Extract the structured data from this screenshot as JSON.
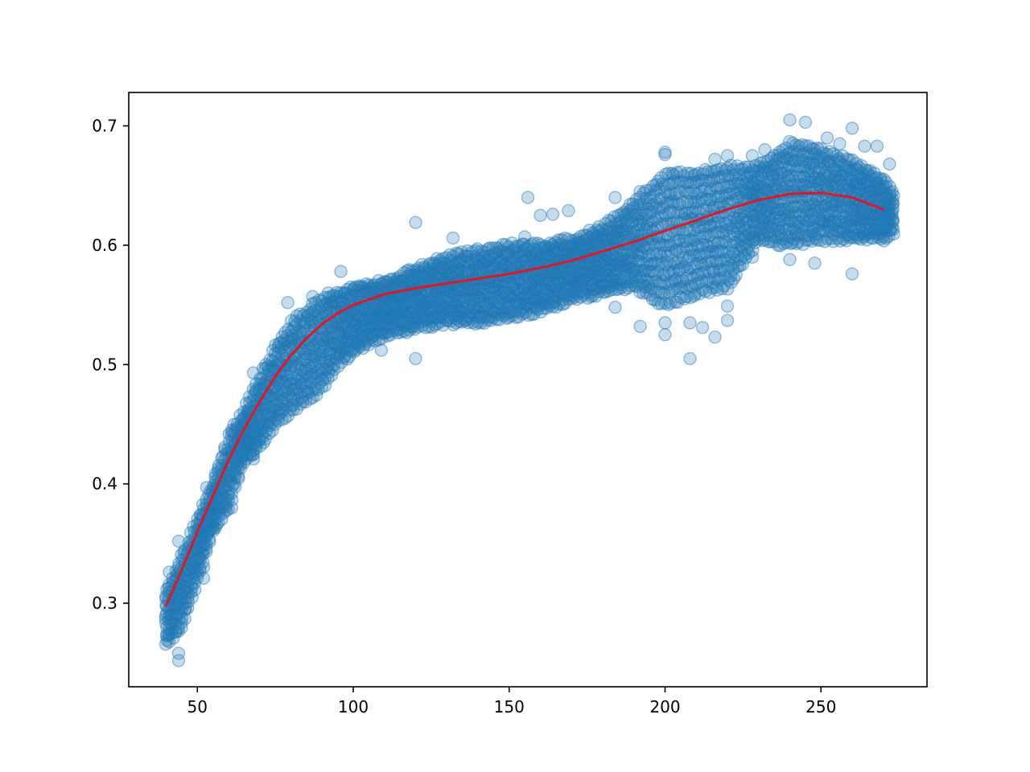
{
  "chart_data": {
    "type": "scatter",
    "title": "",
    "xlabel": "",
    "ylabel": "",
    "xlim": [
      28,
      284
    ],
    "ylim": [
      0.23,
      0.728
    ],
    "grid": false,
    "legend": "none",
    "x_ticks": [
      50,
      100,
      150,
      200,
      250
    ],
    "x_tick_labels": [
      "50",
      "100",
      "150",
      "200",
      "250"
    ],
    "y_ticks": [
      0.3,
      0.4,
      0.5,
      0.6,
      0.7
    ],
    "y_tick_labels": [
      "0.3",
      "0.4",
      "0.5",
      "0.6",
      "0.7"
    ],
    "colors": {
      "scatter": "#1f77b4",
      "fit_line": "#e8141a"
    },
    "series": [
      {
        "kind": "scatter",
        "band_envelope": [
          {
            "x": 40,
            "ymin": 0.265,
            "ymax": 0.31
          },
          {
            "x": 45,
            "ymin": 0.28,
            "ymax": 0.34
          },
          {
            "x": 50,
            "ymin": 0.32,
            "ymax": 0.37
          },
          {
            "x": 55,
            "ymin": 0.36,
            "ymax": 0.4
          },
          {
            "x": 60,
            "ymin": 0.38,
            "ymax": 0.44
          },
          {
            "x": 65,
            "ymin": 0.42,
            "ymax": 0.46
          },
          {
            "x": 70,
            "ymin": 0.43,
            "ymax": 0.49
          },
          {
            "x": 75,
            "ymin": 0.45,
            "ymax": 0.515
          },
          {
            "x": 80,
            "ymin": 0.46,
            "ymax": 0.535
          },
          {
            "x": 85,
            "ymin": 0.47,
            "ymax": 0.545
          },
          {
            "x": 90,
            "ymin": 0.48,
            "ymax": 0.555
          },
          {
            "x": 95,
            "ymin": 0.5,
            "ymax": 0.56
          },
          {
            "x": 100,
            "ymin": 0.51,
            "ymax": 0.565
          },
          {
            "x": 110,
            "ymin": 0.525,
            "ymax": 0.57
          },
          {
            "x": 120,
            "ymin": 0.53,
            "ymax": 0.58
          },
          {
            "x": 130,
            "ymin": 0.535,
            "ymax": 0.59
          },
          {
            "x": 140,
            "ymin": 0.535,
            "ymax": 0.595
          },
          {
            "x": 150,
            "ymin": 0.54,
            "ymax": 0.6
          },
          {
            "x": 160,
            "ymin": 0.545,
            "ymax": 0.6
          },
          {
            "x": 170,
            "ymin": 0.555,
            "ymax": 0.605
          },
          {
            "x": 180,
            "ymin": 0.56,
            "ymax": 0.615
          },
          {
            "x": 190,
            "ymin": 0.565,
            "ymax": 0.635
          },
          {
            "x": 200,
            "ymin": 0.55,
            "ymax": 0.66
          },
          {
            "x": 210,
            "ymin": 0.56,
            "ymax": 0.66
          },
          {
            "x": 220,
            "ymin": 0.565,
            "ymax": 0.665
          },
          {
            "x": 230,
            "ymin": 0.605,
            "ymax": 0.665
          },
          {
            "x": 240,
            "ymin": 0.6,
            "ymax": 0.685
          },
          {
            "x": 250,
            "ymin": 0.605,
            "ymax": 0.68
          },
          {
            "x": 260,
            "ymin": 0.605,
            "ymax": 0.67
          },
          {
            "x": 270,
            "ymin": 0.605,
            "ymax": 0.655
          },
          {
            "x": 273,
            "ymin": 0.61,
            "ymax": 0.645
          }
        ],
        "outliers": [
          {
            "x": 44,
            "y": 0.252
          },
          {
            "x": 44,
            "y": 0.258
          },
          {
            "x": 41,
            "y": 0.326
          },
          {
            "x": 44,
            "y": 0.352
          },
          {
            "x": 52,
            "y": 0.321
          },
          {
            "x": 52,
            "y": 0.33
          },
          {
            "x": 53,
            "y": 0.397
          },
          {
            "x": 61,
            "y": 0.38
          },
          {
            "x": 61,
            "y": 0.445
          },
          {
            "x": 68,
            "y": 0.421
          },
          {
            "x": 68,
            "y": 0.425
          },
          {
            "x": 68,
            "y": 0.493
          },
          {
            "x": 79,
            "y": 0.552
          },
          {
            "x": 87,
            "y": 0.557
          },
          {
            "x": 92,
            "y": 0.56
          },
          {
            "x": 96,
            "y": 0.578
          },
          {
            "x": 102,
            "y": 0.566
          },
          {
            "x": 109,
            "y": 0.512
          },
          {
            "x": 120,
            "y": 0.505
          },
          {
            "x": 120,
            "y": 0.619
          },
          {
            "x": 132,
            "y": 0.606
          },
          {
            "x": 155,
            "y": 0.607
          },
          {
            "x": 156,
            "y": 0.64
          },
          {
            "x": 160,
            "y": 0.625
          },
          {
            "x": 164,
            "y": 0.626
          },
          {
            "x": 169,
            "y": 0.629
          },
          {
            "x": 184,
            "y": 0.548
          },
          {
            "x": 184,
            "y": 0.64
          },
          {
            "x": 192,
            "y": 0.532
          },
          {
            "x": 192,
            "y": 0.645
          },
          {
            "x": 200,
            "y": 0.525
          },
          {
            "x": 200,
            "y": 0.535
          },
          {
            "x": 200,
            "y": 0.676
          },
          {
            "x": 200,
            "y": 0.678
          },
          {
            "x": 208,
            "y": 0.505
          },
          {
            "x": 208,
            "y": 0.535
          },
          {
            "x": 212,
            "y": 0.531
          },
          {
            "x": 216,
            "y": 0.523
          },
          {
            "x": 220,
            "y": 0.537
          },
          {
            "x": 220,
            "y": 0.549
          },
          {
            "x": 216,
            "y": 0.672
          },
          {
            "x": 220,
            "y": 0.675
          },
          {
            "x": 228,
            "y": 0.59
          },
          {
            "x": 228,
            "y": 0.675
          },
          {
            "x": 232,
            "y": 0.68
          },
          {
            "x": 240,
            "y": 0.588
          },
          {
            "x": 240,
            "y": 0.705
          },
          {
            "x": 245,
            "y": 0.703
          },
          {
            "x": 248,
            "y": 0.585
          },
          {
            "x": 252,
            "y": 0.69
          },
          {
            "x": 256,
            "y": 0.685
          },
          {
            "x": 260,
            "y": 0.698
          },
          {
            "x": 260,
            "y": 0.576
          },
          {
            "x": 264,
            "y": 0.683
          },
          {
            "x": 268,
            "y": 0.683
          },
          {
            "x": 272,
            "y": 0.668
          }
        ]
      },
      {
        "kind": "line",
        "points": [
          {
            "x": 40,
            "y": 0.298
          },
          {
            "x": 45,
            "y": 0.328
          },
          {
            "x": 50,
            "y": 0.36
          },
          {
            "x": 55,
            "y": 0.39
          },
          {
            "x": 60,
            "y": 0.42
          },
          {
            "x": 65,
            "y": 0.446
          },
          {
            "x": 70,
            "y": 0.469
          },
          {
            "x": 75,
            "y": 0.49
          },
          {
            "x": 80,
            "y": 0.508
          },
          {
            "x": 85,
            "y": 0.522
          },
          {
            "x": 90,
            "y": 0.534
          },
          {
            "x": 95,
            "y": 0.543
          },
          {
            "x": 100,
            "y": 0.55
          },
          {
            "x": 110,
            "y": 0.559
          },
          {
            "x": 120,
            "y": 0.564
          },
          {
            "x": 130,
            "y": 0.568
          },
          {
            "x": 140,
            "y": 0.572
          },
          {
            "x": 150,
            "y": 0.576
          },
          {
            "x": 160,
            "y": 0.581
          },
          {
            "x": 170,
            "y": 0.587
          },
          {
            "x": 180,
            "y": 0.595
          },
          {
            "x": 190,
            "y": 0.603
          },
          {
            "x": 200,
            "y": 0.612
          },
          {
            "x": 210,
            "y": 0.621
          },
          {
            "x": 220,
            "y": 0.63
          },
          {
            "x": 230,
            "y": 0.638
          },
          {
            "x": 240,
            "y": 0.643
          },
          {
            "x": 250,
            "y": 0.644
          },
          {
            "x": 260,
            "y": 0.64
          },
          {
            "x": 270,
            "y": 0.63
          }
        ]
      }
    ]
  }
}
